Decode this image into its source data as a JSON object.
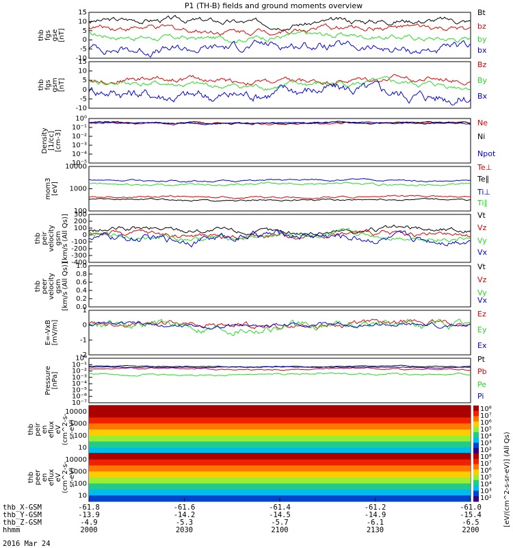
{
  "title": "P1 (TH-B) fields and ground moments overview",
  "date": "2016 Mar 24",
  "colors": {
    "black": "#000000",
    "red": "#e00000",
    "green": "#22dd22",
    "blue": "#0000dd"
  },
  "chart_data": [
    {
      "type": "line",
      "name": "fgs_gse",
      "ylabel": [
        "thb",
        "fgs",
        "gse",
        "[nT]"
      ],
      "ylim": [
        -15,
        15
      ],
      "yticks": [
        "-10",
        "-5",
        "0",
        "5",
        "10",
        "15"
      ],
      "series": [
        {
          "name": "Bt",
          "color": "#000000",
          "level": 9,
          "noise": 2
        },
        {
          "name": "bz",
          "color": "#e00000",
          "level": 4,
          "noise": 2
        },
        {
          "name": "by",
          "color": "#22dd22",
          "level": -1,
          "noise": 2
        },
        {
          "name": "bx",
          "color": "#0000dd",
          "level": -8,
          "noise": 3
        }
      ]
    },
    {
      "type": "line",
      "name": "fgs_gsm",
      "ylabel": [
        "thb",
        "fgs",
        "gsm",
        "[nT]"
      ],
      "ylim": [
        -15,
        15
      ],
      "yticks": [
        "-10",
        "-5",
        "0",
        "5",
        "10",
        "15"
      ],
      "series": [
        {
          "name": "Bz",
          "color": "#e00000",
          "level": 3,
          "noise": 2
        },
        {
          "name": "By",
          "color": "#22dd22",
          "level": 0,
          "noise": 2
        },
        {
          "name": "Bx",
          "color": "#0000dd",
          "level": -5,
          "noise": 4
        }
      ]
    },
    {
      "type": "line",
      "name": "density",
      "log": true,
      "ylabel": [
        "Density",
        "[1/cc]",
        "[cm-3]"
      ],
      "ylim": [
        -6,
        0
      ],
      "yticks": [
        "10⁻⁵",
        "10⁻⁴",
        "10⁻³",
        "10⁻²",
        "10⁻¹",
        "10⁰"
      ],
      "series": [
        {
          "name": "Ne",
          "color": "#e00000",
          "level": -0.6,
          "noise": 0.15
        },
        {
          "name": "Ni",
          "color": "#000000",
          "level": -0.6,
          "noise": 0.12
        },
        {
          "name": "Npot",
          "color": "#0000dd",
          "level": -0.6,
          "noise": 0.1
        }
      ]
    },
    {
      "type": "line",
      "name": "temperature",
      "log": true,
      "ylabel": [
        "mom3",
        "[eV]"
      ],
      "ylim": [
        1.6,
        4
      ],
      "yticks": [
        "100",
        "1000",
        "10000"
      ],
      "series": [
        {
          "name": "Te⊥",
          "color": "#e00000",
          "level": 2.35,
          "noise": 0.05
        },
        {
          "name": "Te∥",
          "color": "#000000",
          "level": 2.2,
          "noise": 0.05
        },
        {
          "name": "Ti⊥",
          "color": "#0000dd",
          "level": 3.25,
          "noise": 0.05
        },
        {
          "name": "Ti∥",
          "color": "#22dd22",
          "level": 3.05,
          "noise": 0.06
        }
      ]
    },
    {
      "type": "line",
      "name": "peir_velocity",
      "ylabel": [
        "thb",
        "peir",
        "velocity",
        "gsm",
        "[km/s (All Qs)]"
      ],
      "ylim": [
        -400,
        300
      ],
      "yticks": [
        "-400",
        "-300",
        "-200",
        "-100",
        "0",
        "100",
        "200",
        "300"
      ],
      "series": [
        {
          "name": "Vt",
          "color": "#000000",
          "level": 60,
          "noise": 40
        },
        {
          "name": "Vz",
          "color": "#e00000",
          "level": 0,
          "noise": 40
        },
        {
          "name": "Vy",
          "color": "#22dd22",
          "level": -20,
          "noise": 40
        },
        {
          "name": "Vx",
          "color": "#0000dd",
          "level": -30,
          "noise": 60
        }
      ]
    },
    {
      "type": "line",
      "name": "peer_velocity",
      "ylabel": [
        "thb",
        "peer",
        "velocity",
        "gsm",
        "[km/s (All Qs)]"
      ],
      "ylim": [
        0,
        1
      ],
      "yticks": [
        "0.0",
        "0.2",
        "0.4",
        "0.6",
        "0.8",
        "1.0"
      ],
      "series": [
        {
          "name": "Vt",
          "color": "#000000"
        },
        {
          "name": "Vz",
          "color": "#e00000"
        },
        {
          "name": "Vy",
          "color": "#22dd22"
        },
        {
          "name": "Vx",
          "color": "#0000dd"
        }
      ]
    },
    {
      "type": "line",
      "name": "efield",
      "ylabel": [
        "E=-VxB",
        "[mV/m]"
      ],
      "ylim": [
        -2,
        1
      ],
      "yticks": [
        "-2",
        "-1",
        "0",
        "1"
      ],
      "series": [
        {
          "name": "Ez",
          "color": "#e00000",
          "level": 0.05,
          "noise": 0.2
        },
        {
          "name": "Ey",
          "color": "#22dd22",
          "level": -0.05,
          "noise": 0.3
        },
        {
          "name": "Ex",
          "color": "#0000dd",
          "level": 0,
          "noise": 0.15
        }
      ]
    },
    {
      "type": "line",
      "name": "pressure",
      "log": true,
      "ylabel": [
        "Pressure",
        "[nPa]"
      ],
      "ylim": [
        -7,
        0
      ],
      "yticks": [
        "10⁻⁷",
        "10⁻⁶",
        "10⁻⁵",
        "10⁻⁴",
        "10⁻³",
        "10⁻²",
        "10⁻¹",
        "10⁰"
      ],
      "series": [
        {
          "name": "Pt",
          "color": "#000000",
          "level": -1.3,
          "noise": 0.08
        },
        {
          "name": "Pb",
          "color": "#e00000",
          "level": -1.7,
          "noise": 0.12
        },
        {
          "name": "Pe",
          "color": "#22dd22",
          "level": -2.5,
          "noise": 0.15
        },
        {
          "name": "Pi",
          "color": "#0000dd",
          "level": -1.4,
          "noise": 0.08
        }
      ]
    },
    {
      "type": "heatmap",
      "name": "peir_eflux",
      "ylabel": [
        "thb",
        "peir",
        "en",
        "eflux",
        "eV",
        "(cm^2-s-",
        "sr-eV)"
      ],
      "yticks": [
        "10",
        "100",
        "1000",
        "10000"
      ],
      "colorbar": {
        "ticks": [
          "10²",
          "10³",
          "10⁴",
          "10⁵",
          "10⁶",
          "10⁷",
          "10⁸"
        ],
        "label": "[eV/(cm^2-s-sr-eV)] (All Qs)"
      }
    },
    {
      "type": "heatmap",
      "name": "peer_eflux",
      "ylabel": [
        "thb",
        "peer",
        "en",
        "eflux",
        "eV",
        "(cm^2-s-",
        "sr-eV)"
      ],
      "yticks": [
        "10",
        "100",
        "1000",
        "10000"
      ],
      "colorbar": {
        "ticks": [
          "10²",
          "10³",
          "10⁴",
          "10⁵",
          "10⁶",
          "10⁷",
          "10⁸"
        ],
        "label": "[eV/(cm^2-s-sr-eV)] (All Qs)"
      }
    }
  ],
  "xaxis": {
    "rows": [
      {
        "label": "thb_X-GSM",
        "values": [
          "-61.8",
          "-61.6",
          "-61.4",
          "-61.2",
          "-61.0"
        ]
      },
      {
        "label": "thb_Y-GSM",
        "values": [
          "-13.9",
          "-14.2",
          "-14.5",
          "-14.9",
          "-15.4"
        ]
      },
      {
        "label": "thb_Z-GSM",
        "values": [
          "-4.9",
          "-5.3",
          "-5.7",
          "-6.1",
          "-6.5"
        ]
      },
      {
        "label": "hhmm",
        "values": [
          "2000",
          "2030",
          "2100",
          "2130",
          "2200"
        ]
      }
    ]
  }
}
